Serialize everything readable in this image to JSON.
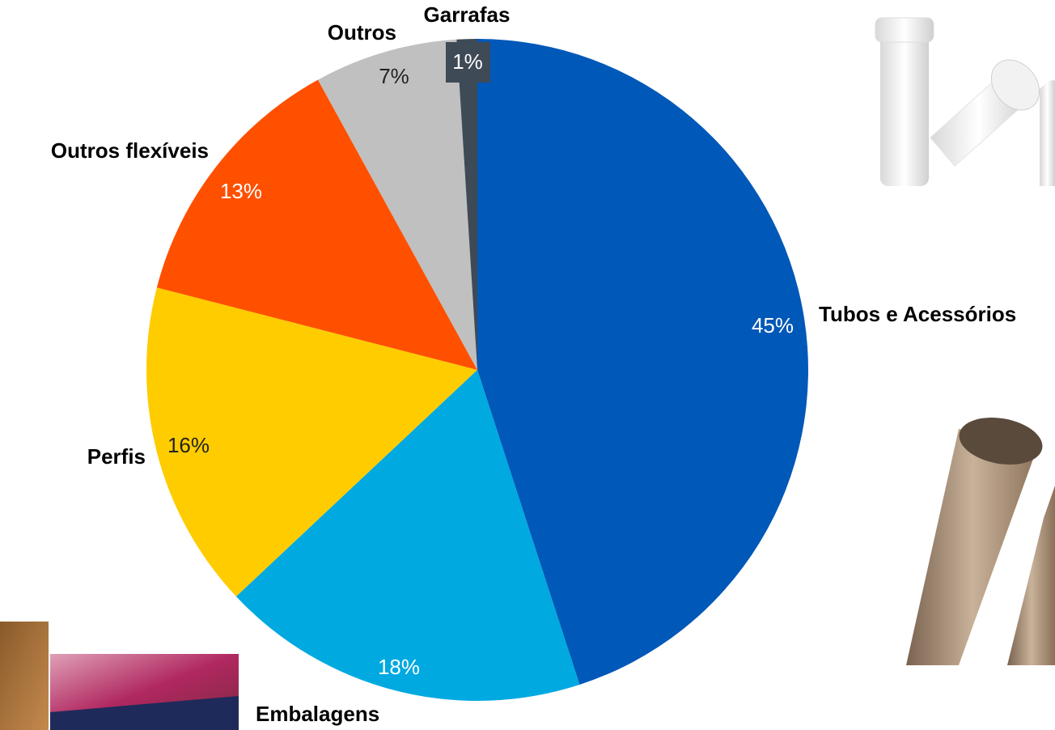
{
  "chart_data": {
    "type": "pie",
    "categories": [
      "Tubos e Acessórios",
      "Embalagens",
      "Perfis",
      "Outros flexíveis",
      "Outros",
      "Garrafas"
    ],
    "values": [
      45,
      18,
      16,
      13,
      7,
      1
    ],
    "value_labels": [
      "45%",
      "18%",
      "16%",
      "13%",
      "7%",
      "1%"
    ],
    "colors": [
      "#0058b8",
      "#00a9e0",
      "#ffcc00",
      "#ff5000",
      "#c0c0c0",
      "#3e4a55"
    ]
  }
}
